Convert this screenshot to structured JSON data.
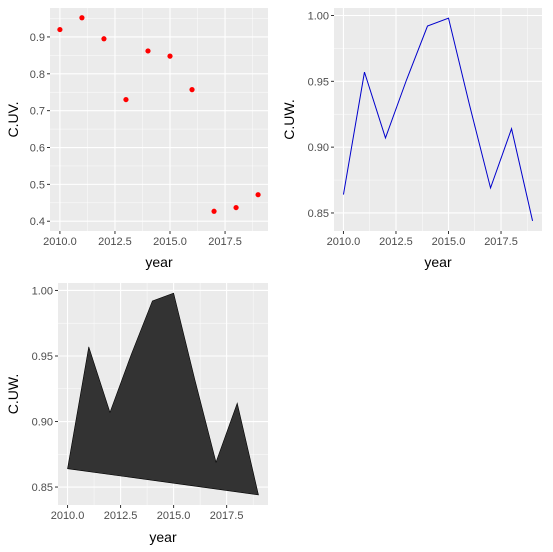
{
  "chart_data": [
    {
      "type": "scatter",
      "xlabel": "year",
      "ylabel": "C.UV.",
      "x": [
        2010,
        2011,
        2012,
        2013,
        2014,
        2015,
        2016,
        2017,
        2018,
        2019
      ],
      "series": [
        {
          "values": [
            0.92,
            0.952,
            0.895,
            0.73,
            0.862,
            0.848,
            0.757,
            0.427,
            0.437,
            0.472
          ],
          "color": "#ff0000"
        }
      ],
      "xlim": [
        2009.55,
        2019.45
      ],
      "ylim": [
        0.3735,
        0.9785
      ],
      "xticks": [
        2010,
        2012.5,
        2015,
        2017.5
      ],
      "xtick_labels": [
        "2010.0",
        "2012.5",
        "2015.0",
        "2017.5"
      ],
      "yticks": [
        0.4,
        0.5,
        0.6,
        0.7,
        0.8,
        0.9
      ],
      "ytick_labels": [
        "0.4",
        "0.5",
        "0.6",
        "0.7",
        "0.8",
        "0.9"
      ],
      "grid": true
    },
    {
      "type": "line",
      "xlabel": "year",
      "ylabel": "C.UW.",
      "x": [
        2010,
        2011,
        2012,
        2013,
        2014,
        2015,
        2016,
        2017,
        2018,
        2019
      ],
      "series": [
        {
          "values": [
            0.864,
            0.957,
            0.907,
            0.951,
            0.992,
            0.998,
            0.932,
            0.869,
            0.914,
            0.844
          ],
          "color": "#0000cc"
        }
      ],
      "xlim": [
        2009.55,
        2019.45
      ],
      "ylim": [
        0.8363,
        1.0057
      ],
      "xticks": [
        2010,
        2012.5,
        2015,
        2017.5
      ],
      "xtick_labels": [
        "2010.0",
        "2012.5",
        "2015.0",
        "2017.5"
      ],
      "yticks": [
        0.85,
        0.9,
        0.95,
        1.0
      ],
      "ytick_labels": [
        "0.85",
        "0.90",
        "0.95",
        "1.00"
      ],
      "grid": true
    },
    {
      "type": "area",
      "xlabel": "year",
      "ylabel": "C.UW.",
      "x": [
        2010,
        2011,
        2012,
        2013,
        2014,
        2015,
        2016,
        2017,
        2018,
        2019
      ],
      "series": [
        {
          "values": [
            0.864,
            0.957,
            0.907,
            0.951,
            0.992,
            0.998,
            0.932,
            0.869,
            0.914,
            0.844
          ],
          "color": "#333333"
        }
      ],
      "xlim": [
        2009.55,
        2019.45
      ],
      "ylim": [
        0.8363,
        1.0057
      ],
      "xticks": [
        2010,
        2012.5,
        2015,
        2017.5
      ],
      "xtick_labels": [
        "2010.0",
        "2012.5",
        "2015.0",
        "2017.5"
      ],
      "yticks": [
        0.85,
        0.9,
        0.95,
        1.0
      ],
      "ytick_labels": [
        "0.85",
        "0.90",
        "0.95",
        "1.00"
      ],
      "grid": true
    }
  ]
}
